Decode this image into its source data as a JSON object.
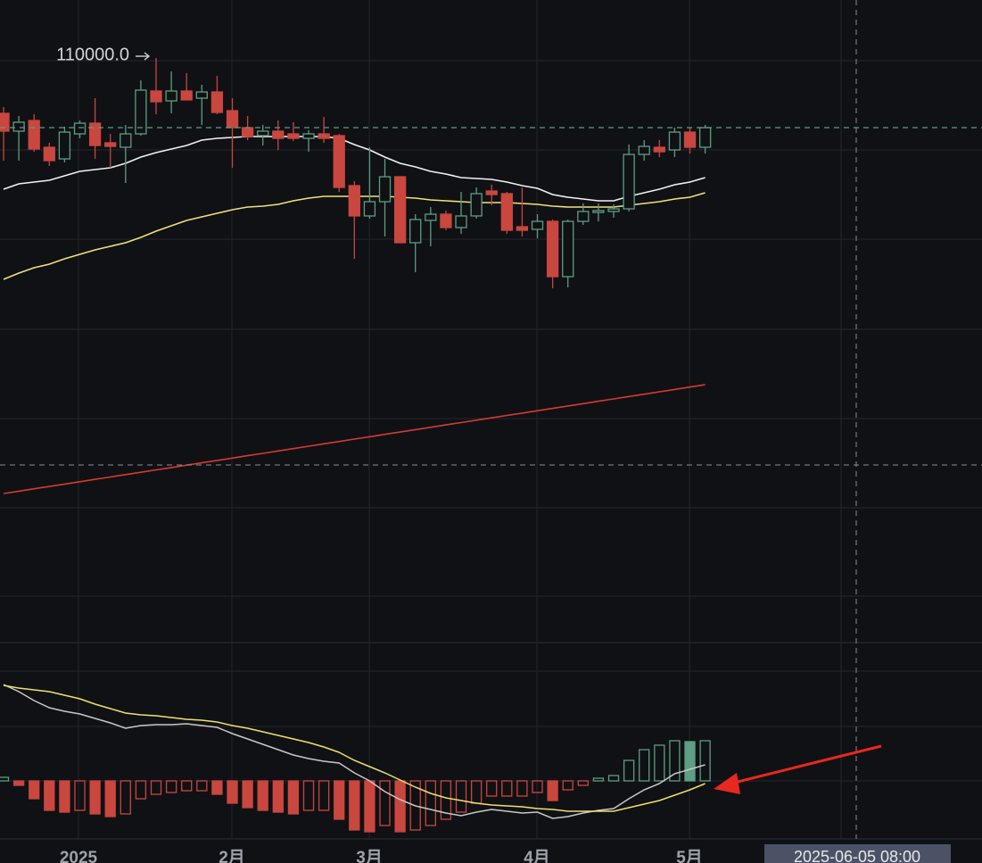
{
  "chart_data": {
    "type": "candlestick",
    "xlim": [
      -0.234,
      64.15
    ],
    "xticks": [
      {
        "value": 4.91,
        "label": "2025"
      },
      {
        "value": 14.97,
        "label": "2月"
      },
      {
        "value": 23.98,
        "label": "3月"
      },
      {
        "value": 34.97,
        "label": "4月"
      },
      {
        "value": 44.97,
        "label": "5月"
      }
    ],
    "ylim": [
      23540,
      118580
    ],
    "up_color": "#5d9e84",
    "down_color": "#c9473f",
    "open": [
      101820,
      99180,
      100760,
      96800,
      95080,
      98780,
      100360,
      97460,
      96800,
      98780,
      105120,
      103660,
      105120,
      104060,
      104980,
      102210,
      99700,
      98520,
      99180,
      98780,
      98120,
      98780,
      98520,
      91120,
      86640,
      88750,
      92440,
      82680,
      85980,
      86900,
      84920,
      86640,
      90330,
      89940,
      85050,
      84660,
      85840,
      77660,
      85840,
      87160,
      87300,
      87690,
      95740,
      96800,
      96400,
      99040,
      96800
    ],
    "high": [
      102740,
      101420,
      101680,
      97460,
      99840,
      100760,
      104060,
      98780,
      100100,
      106700,
      110000,
      108020,
      107760,
      106040,
      107360,
      104060,
      101420,
      100100,
      100760,
      100500,
      99310,
      101290,
      98780,
      91780,
      96800,
      95080,
      92440,
      86900,
      87960,
      87430,
      90200,
      90860,
      91260,
      90200,
      90860,
      86900,
      86110,
      86110,
      88480,
      88480,
      88350,
      97200,
      97860,
      97860,
      99700,
      99700,
      100100
    ],
    "low": [
      94820,
      94820,
      96140,
      94030,
      94560,
      98120,
      95080,
      93760,
      91520,
      98520,
      101680,
      101820,
      103800,
      100100,
      101680,
      93760,
      97860,
      97060,
      96400,
      97720,
      96140,
      97460,
      90200,
      80300,
      86240,
      83600,
      82680,
      78320,
      82150,
      84520,
      84000,
      86240,
      88220,
      84000,
      83600,
      83340,
      75940,
      76080,
      85320,
      85840,
      86370,
      87300,
      94820,
      95350,
      95350,
      95880,
      95880
    ],
    "close": [
      99180,
      100500,
      96540,
      94820,
      99040,
      100360,
      97060,
      96930,
      98780,
      105250,
      103530,
      105120,
      103800,
      104980,
      101950,
      99700,
      98380,
      99180,
      98120,
      98120,
      98780,
      98120,
      90860,
      86640,
      88750,
      92440,
      82680,
      86110,
      86900,
      84920,
      86640,
      89940,
      89800,
      84520,
      84520,
      85840,
      77660,
      85840,
      87300,
      87430,
      87690,
      95740,
      96930,
      96140,
      99040,
      96800,
      99700
    ],
    "high_marker": {
      "value": 110000,
      "label": "110000.0"
    },
    "lines": [
      {
        "color": "#f2f2f2",
        "values": [
          90600,
          91390,
          91650,
          91920,
          92580,
          93240,
          93500,
          93760,
          94420,
          95350,
          96010,
          96540,
          97060,
          97860,
          98120,
          98250,
          98380,
          98380,
          98380,
          98380,
          98380,
          98380,
          98120,
          97200,
          96400,
          95350,
          94420,
          93900,
          93240,
          92840,
          92310,
          92180,
          92050,
          91650,
          91120,
          90730,
          89800,
          89410,
          89140,
          88880,
          88880,
          89540,
          90070,
          90600,
          91260,
          91650,
          92310
        ]
      },
      {
        "color": "#efe27a",
        "values": [
          77260,
          78190,
          78980,
          79510,
          80300,
          80960,
          81620,
          82150,
          82680,
          83470,
          84390,
          85180,
          85980,
          86500,
          87030,
          87560,
          87960,
          88090,
          88350,
          88880,
          89280,
          89540,
          89540,
          89540,
          89540,
          89540,
          89410,
          89280,
          89010,
          88880,
          88750,
          88620,
          88620,
          88620,
          88480,
          88350,
          88090,
          87960,
          87960,
          87960,
          87960,
          88220,
          88480,
          88750,
          89140,
          89410,
          90070
        ]
      },
      {
        "color": "#d63a33",
        "values": [
          45580,
          45930,
          46280,
          46630,
          46980,
          47330,
          47680,
          48030,
          48380,
          48730,
          49080,
          49430,
          49780,
          50130,
          50480,
          50830,
          51180,
          51530,
          51880,
          52230,
          52580,
          52930,
          53280,
          53630,
          53980,
          54330,
          54680,
          55030,
          55380,
          55730,
          56080,
          56430,
          56780,
          57130,
          57480,
          57830,
          58180,
          58530,
          58880,
          59230,
          59580,
          59930,
          60280,
          60630,
          60980,
          61330,
          61680
        ]
      }
    ],
    "macd": {
      "ylim": [
        -3250,
        7750
      ],
      "histogram": [
        200,
        -250,
        -1000,
        -1650,
        -1750,
        -1650,
        -1850,
        -2000,
        -1850,
        -1000,
        -750,
        -650,
        -550,
        -550,
        -750,
        -1250,
        -1500,
        -1650,
        -1750,
        -1850,
        -1650,
        -1650,
        -2150,
        -2750,
        -2850,
        -2500,
        -2850,
        -2750,
        -2500,
        -2150,
        -1750,
        -1250,
        -850,
        -850,
        -850,
        -650,
        -1100,
        -500,
        -250,
        150,
        300,
        1150,
        1750,
        2000,
        2250,
        2200,
        2250
      ],
      "lines": [
        {
          "color": "#c8c8c8",
          "values": [
            5400,
            5000,
            4500,
            4100,
            3900,
            3750,
            3500,
            3250,
            2950,
            3100,
            3150,
            3150,
            3200,
            3100,
            3000,
            2650,
            2350,
            2050,
            1750,
            1450,
            1250,
            1100,
            1000,
            450,
            0,
            -600,
            -1050,
            -1400,
            -1600,
            -1800,
            -1950,
            -1750,
            -1600,
            -1700,
            -1800,
            -1750,
            -2100,
            -2000,
            -1800,
            -1650,
            -1550,
            -1000,
            -500,
            -150,
            400,
            650,
            900
          ]
        },
        {
          "color": "#f0e06e",
          "values": [
            5350,
            5200,
            5100,
            5000,
            4800,
            4600,
            4300,
            4050,
            3800,
            3700,
            3650,
            3550,
            3450,
            3400,
            3300,
            3100,
            2950,
            2750,
            2550,
            2350,
            2150,
            1900,
            1600,
            1150,
            800,
            450,
            50,
            -350,
            -700,
            -950,
            -1100,
            -1250,
            -1350,
            -1400,
            -1450,
            -1550,
            -1600,
            -1700,
            -1700,
            -1700,
            -1700,
            -1500,
            -1300,
            -1100,
            -800,
            -500,
            -150
          ]
        }
      ]
    },
    "crosshair_label": "2025-06-05 08:00"
  }
}
